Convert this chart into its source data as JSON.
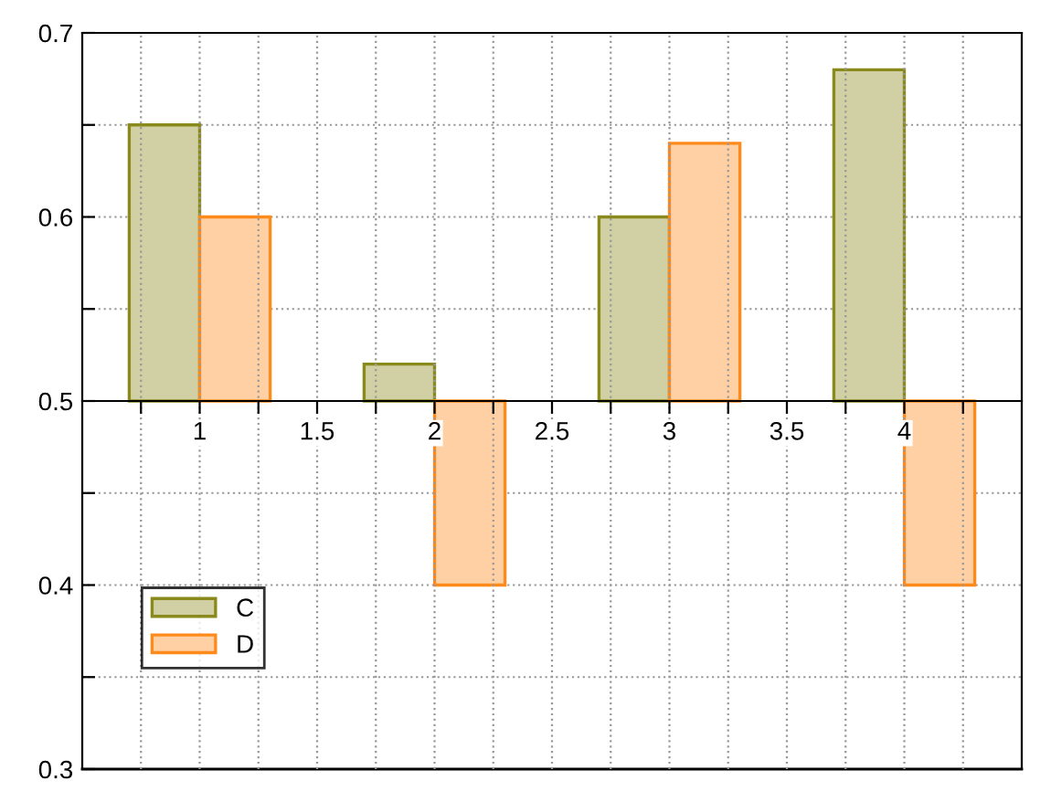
{
  "chart_data": {
    "type": "bar",
    "x": [
      1,
      2,
      3,
      4
    ],
    "series": [
      {
        "name": "C",
        "color": "#8a8a1c",
        "base": [
          0.5,
          0.5,
          0.5,
          0.5
        ],
        "values": [
          0.15,
          0.02,
          0.1,
          0.18
        ]
      },
      {
        "name": "D",
        "color": "#ff8a1c",
        "base": [
          0.5,
          0.5,
          0.5,
          0.5
        ],
        "values": [
          0.1,
          -0.1,
          0.14,
          -0.1
        ]
      }
    ],
    "xlim": [
      0.5,
      4.5
    ],
    "xticks": [
      {
        "value": 0.75,
        "label": null
      },
      1,
      {
        "value": 1.25,
        "label": null
      },
      1.5,
      {
        "value": 1.75,
        "label": null
      },
      2,
      {
        "value": 2.25,
        "label": null
      },
      2.5,
      {
        "value": 2.75,
        "label": null
      },
      3,
      {
        "value": 3.25,
        "label": null
      },
      3.5,
      {
        "value": 3.75,
        "label": null
      },
      4,
      {
        "value": 4.25,
        "label": null
      }
    ],
    "ylim": [
      0.3,
      0.7
    ],
    "yticks": [
      0.3,
      {
        "value": 0.35,
        "label": null
      },
      0.4,
      {
        "value": 0.45,
        "label": null
      },
      0.5,
      {
        "value": 0.55,
        "label": null
      },
      0.6,
      {
        "value": 0.65,
        "label": null
      },
      0.7
    ],
    "grid": true,
    "legend": "bottom left"
  }
}
